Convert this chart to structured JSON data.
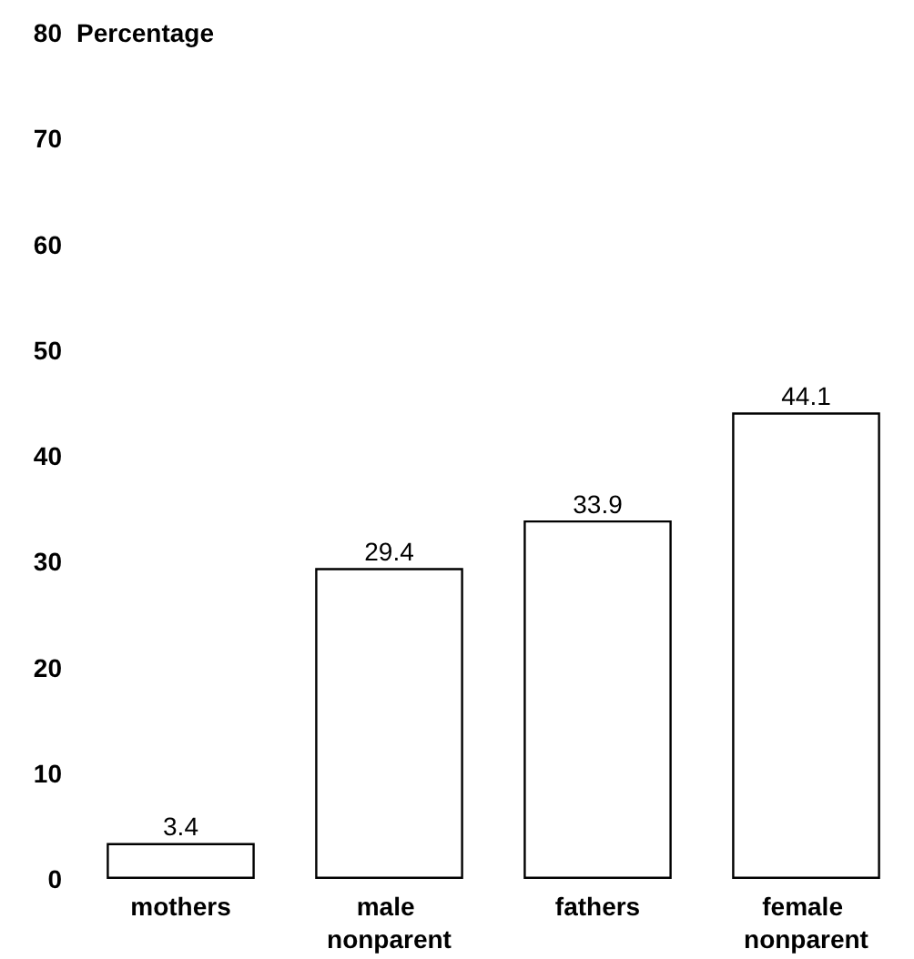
{
  "chart_data": {
    "type": "bar",
    "ylabel": "Percentage",
    "categories": [
      "mothers",
      "male nonparent",
      "fathers",
      "female nonparent"
    ],
    "values": [
      3.4,
      29.4,
      33.9,
      44.1
    ],
    "color": "#ffffff",
    "ylim": [
      0,
      80
    ],
    "yticks": [
      0,
      10,
      20,
      30,
      40,
      50,
      60,
      70,
      80
    ],
    "grid": false,
    "data_labels": true
  }
}
